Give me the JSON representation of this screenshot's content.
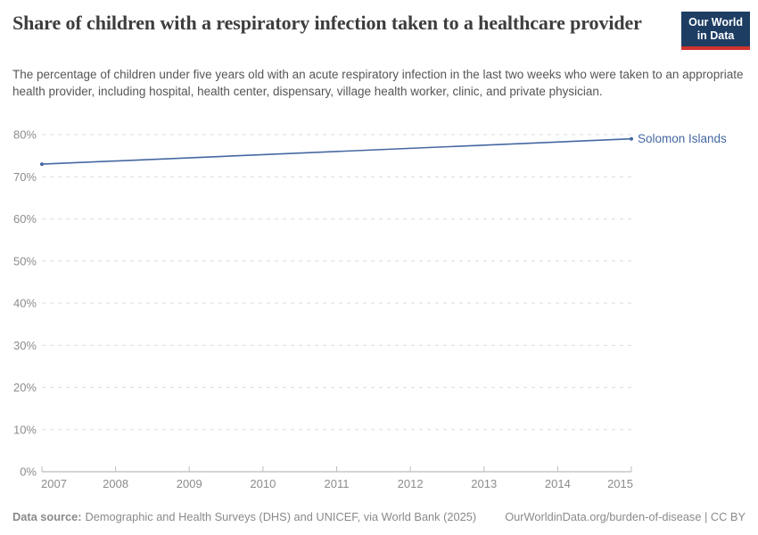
{
  "header": {
    "title": "Share of children with a respiratory infection taken to a healthcare provider",
    "subtitle": "The percentage of children under five years old with an acute respiratory infection in the last two weeks who were taken to an appropriate health provider, including hospital, health center, dispensary, village health worker, clinic, and private physician."
  },
  "logo": {
    "line1": "Our World",
    "line2": "in Data",
    "bg_color": "#1d3d63",
    "accent_color": "#cf332b"
  },
  "chart_data": {
    "type": "line",
    "title": "Share of children with a respiratory infection taken to a healthcare provider",
    "xlabel": "",
    "ylabel": "",
    "xlim": [
      2007,
      2015
    ],
    "ylim": [
      0,
      80
    ],
    "x_ticks": [
      2007,
      2008,
      2009,
      2010,
      2011,
      2012,
      2013,
      2014,
      2015
    ],
    "y_ticks": [
      0,
      10,
      20,
      30,
      40,
      50,
      60,
      70,
      80
    ],
    "y_suffix": "%",
    "grid": "horizontal-dashed",
    "legend_position": "end-of-line-label",
    "series": [
      {
        "name": "Solomon Islands",
        "color": "#4568a2",
        "points": [
          [
            2007,
            73
          ],
          [
            2015,
            79
          ]
        ]
      }
    ],
    "style": {
      "gridline_color": "#dcdcdc",
      "axis_color": "#a8a8a8",
      "tick_label_color": "#8c8c8c"
    }
  },
  "footer": {
    "source_label": "Data source:",
    "source_text": "Demographic and Health Surveys (DHS) and UNICEF, via World Bank (2025)",
    "rights": "OurWorldinData.org/burden-of-disease | CC BY"
  }
}
